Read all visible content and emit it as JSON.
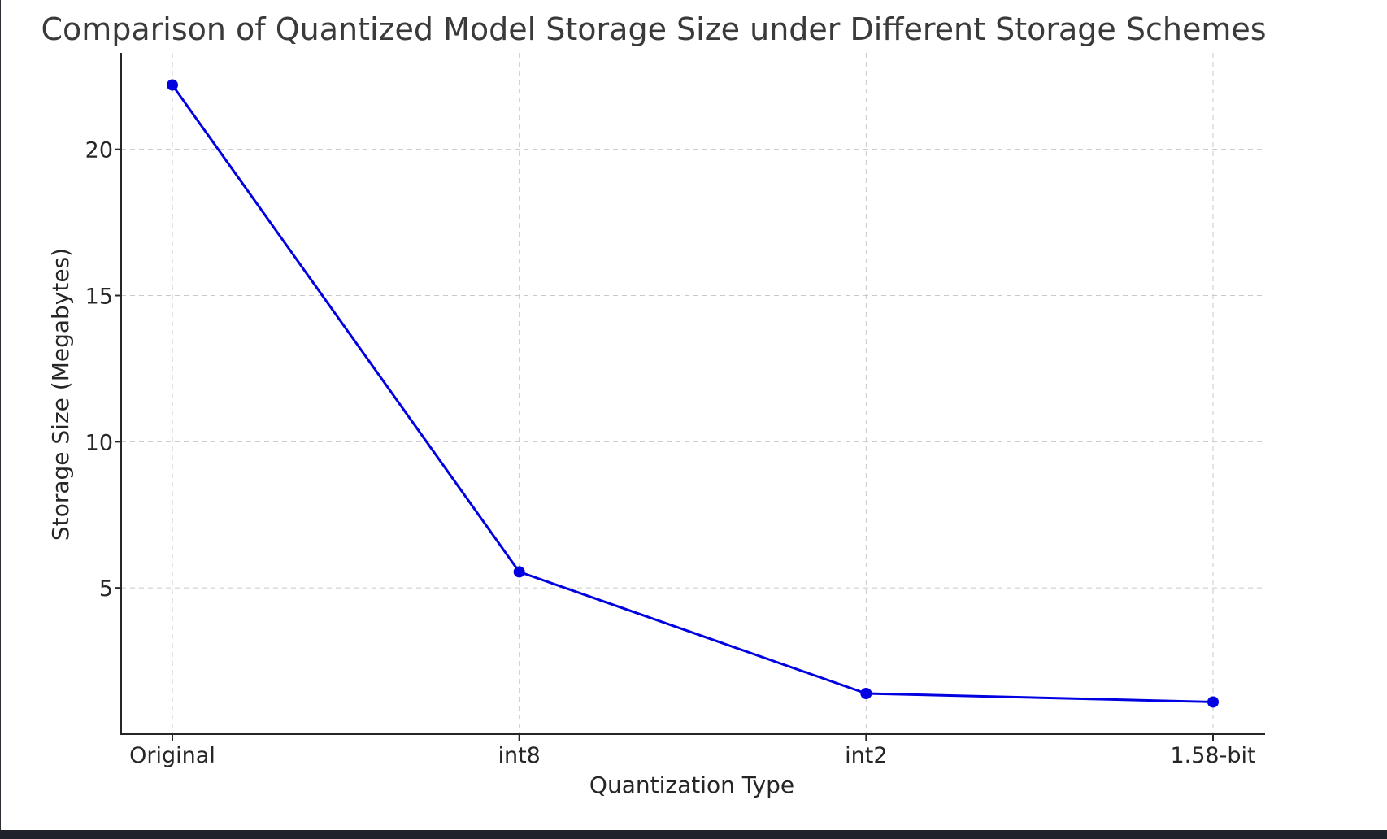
{
  "chart_data": {
    "type": "line",
    "title": "Comparison of Quantized Model Storage Size under Different Storage Schemes",
    "xlabel": "Quantization Type",
    "ylabel": "Storage Size (Megabytes)",
    "categories": [
      "Original",
      "int8",
      "int2",
      "1.58-bit"
    ],
    "series": [
      {
        "values": [
          22.2,
          5.55,
          1.39,
          1.1
        ],
        "color": "#0000e0"
      }
    ],
    "ylim": [
      0,
      23.3
    ],
    "yticks": [
      5,
      10,
      15,
      20
    ],
    "grid": true,
    "legend": "none"
  }
}
